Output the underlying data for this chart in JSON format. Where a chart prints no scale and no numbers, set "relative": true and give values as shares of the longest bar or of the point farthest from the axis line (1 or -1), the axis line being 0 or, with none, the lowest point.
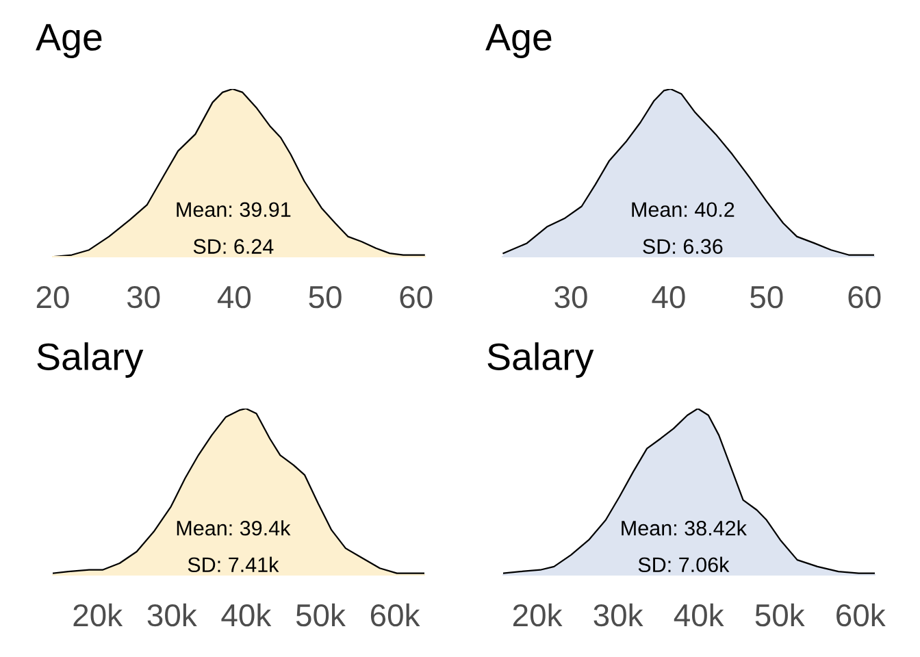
{
  "chart_data": [
    {
      "type": "area",
      "title": "Age",
      "relative": true,
      "tick_labels": "x",
      "xlim": [
        20,
        61
      ],
      "xticks": [
        20,
        30,
        40,
        50,
        60
      ],
      "annotations": [
        "Mean: 39.91",
        "SD: 6.24"
      ],
      "x": [
        20.1,
        22.1,
        24.0,
        26.2,
        28.5,
        30.4,
        32.3,
        33.8,
        35.7,
        37.6,
        38.7,
        39.8,
        40.9,
        42.4,
        43.9,
        45.1,
        46.2,
        47.7,
        49.6,
        51.1,
        52.5,
        54.0,
        55.6,
        57.1,
        58.6,
        60.9
      ],
      "series": [
        {
          "color": "#fdf0cf",
          "values": [
            0,
            0.01,
            0.04,
            0.12,
            0.22,
            0.31,
            0.49,
            0.63,
            0.73,
            0.92,
            0.98,
            1,
            0.98,
            0.89,
            0.78,
            0.71,
            0.61,
            0.45,
            0.29,
            0.2,
            0.12,
            0.09,
            0.05,
            0.02,
            0.01,
            0.01
          ]
        }
      ]
    },
    {
      "type": "area",
      "title": "Age",
      "relative": true,
      "tick_labels": "x",
      "xlim": [
        23,
        61
      ],
      "xticks": [
        30,
        40,
        50,
        60
      ],
      "annotations": [
        "Mean: 40.2",
        "SD: 6.36"
      ],
      "x": [
        23.1,
        25.5,
        27.6,
        29.4,
        31.1,
        32.5,
        33.9,
        35.7,
        37.1,
        38.5,
        39.5,
        40.2,
        41.3,
        42.7,
        44.8,
        46.5,
        48.3,
        50.0,
        51.7,
        53.1,
        54.9,
        56.6,
        58.4,
        61.0
      ],
      "series": [
        {
          "color": "#dde4f1",
          "values": [
            0.02,
            0.08,
            0.18,
            0.23,
            0.3,
            0.43,
            0.57,
            0.69,
            0.8,
            0.93,
            0.99,
            1,
            0.97,
            0.86,
            0.73,
            0.61,
            0.47,
            0.33,
            0.2,
            0.12,
            0.08,
            0.04,
            0.01,
            0.01
          ]
        }
      ]
    },
    {
      "type": "area",
      "title": "Salary",
      "relative": true,
      "tick_labels": "x",
      "xticks": [
        {
          "value": 20000,
          "label": "20k"
        },
        {
          "value": 30000,
          "label": "30k"
        },
        {
          "value": 40000,
          "label": "40k"
        },
        {
          "value": 50000,
          "label": "50k"
        },
        {
          "value": 60000,
          "label": "60k"
        }
      ],
      "xlim": [
        14000,
        64000
      ],
      "annotations": [
        "Mean: 39.4k",
        "SD: 7.41k"
      ],
      "x": [
        14100,
        16100,
        18900,
        20700,
        23000,
        25300,
        27600,
        29900,
        31800,
        33600,
        35400,
        37300,
        39100,
        40000,
        41400,
        43200,
        44600,
        46400,
        47900,
        49700,
        51500,
        53400,
        55700,
        58000,
        60300,
        64000
      ],
      "series": [
        {
          "color": "#fdf0cf",
          "values": [
            0.01,
            0.02,
            0.03,
            0.03,
            0.07,
            0.14,
            0.26,
            0.41,
            0.58,
            0.72,
            0.84,
            0.95,
            0.99,
            1,
            0.97,
            0.82,
            0.72,
            0.66,
            0.6,
            0.43,
            0.27,
            0.16,
            0.1,
            0.04,
            0.01,
            0.01
          ]
        }
      ]
    },
    {
      "type": "area",
      "title": "Salary",
      "relative": true,
      "tick_labels": "x",
      "xticks": [
        {
          "value": 20000,
          "label": "20k"
        },
        {
          "value": 30000,
          "label": "30k"
        },
        {
          "value": 40000,
          "label": "40k"
        },
        {
          "value": 50000,
          "label": "50k"
        },
        {
          "value": 60000,
          "label": "60k"
        }
      ],
      "xlim": [
        15800,
        61800
      ],
      "annotations": [
        "Mean: 38.42k",
        "SD: 7.06k"
      ],
      "x": [
        15800,
        17900,
        20400,
        22100,
        24200,
        26400,
        28500,
        30200,
        31900,
        33600,
        35300,
        36900,
        38600,
        39900,
        41200,
        42500,
        44200,
        45500,
        47200,
        48400,
        50100,
        52200,
        54700,
        57300,
        59800,
        61800
      ],
      "series": [
        {
          "color": "#dde4f1",
          "values": [
            0.01,
            0.02,
            0.03,
            0.05,
            0.12,
            0.21,
            0.33,
            0.47,
            0.62,
            0.76,
            0.82,
            0.88,
            0.96,
            1,
            0.96,
            0.84,
            0.62,
            0.45,
            0.39,
            0.33,
            0.21,
            0.09,
            0.05,
            0.02,
            0.01,
            0.01
          ]
        }
      ]
    }
  ]
}
